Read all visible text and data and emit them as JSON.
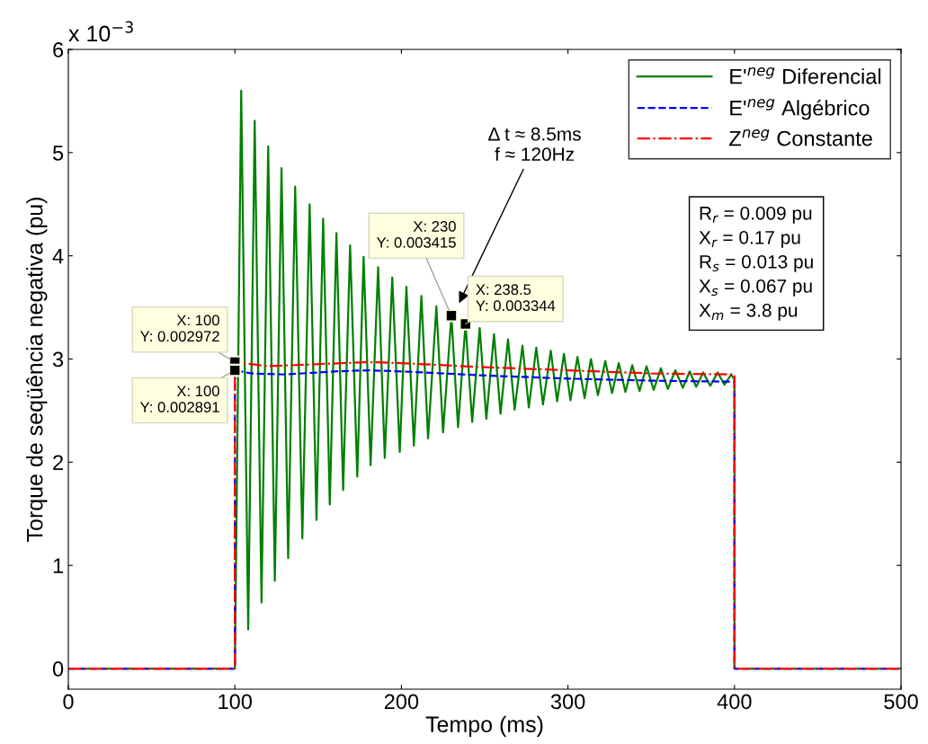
{
  "chart_data": {
    "type": "line",
    "xlabel": "Tempo (ms)",
    "ylabel": "Torque de seqüência negativa (pu)",
    "xlim": [
      0,
      500
    ],
    "xticks": [
      0,
      100,
      200,
      300,
      400,
      500
    ],
    "ylim": [
      -0.2,
      6
    ],
    "yticks": [
      0,
      1,
      2,
      3,
      4,
      5,
      6
    ],
    "grid": false,
    "legend": "top right",
    "series": [
      {
        "name": "E'$^{neg}$ Diferencial",
        "color": "#008000",
        "line_style": "solid",
        "x": [
          0,
          100,
          103.8,
          108,
          111.9,
          116,
          120,
          124,
          128,
          132,
          136.2,
          140.5,
          144.9,
          149,
          153,
          157,
          161,
          165,
          169.2,
          173.5,
          177.3,
          181.5,
          186,
          190,
          194.5,
          199,
          203,
          207.5,
          212,
          216,
          221,
          225,
          230,
          234,
          238.5,
          242.5,
          247,
          251,
          255.6,
          259.5,
          264,
          268,
          272.7,
          276.5,
          281,
          285,
          289.7,
          293.5,
          297.6,
          301.5,
          305.7,
          310,
          313.8,
          318,
          322.4,
          326.5,
          330.5,
          334.5,
          338.6,
          343,
          347.2,
          351.5,
          355.8,
          360,
          364.5,
          369,
          373.1,
          377,
          381.2,
          385.5,
          389.9,
          394,
          398,
          400,
          400,
          500
        ],
        "values": [
          0,
          0,
          5.6,
          0.38,
          5.31,
          0.64,
          5.06,
          0.85,
          4.85,
          1.07,
          4.67,
          1.26,
          4.5,
          1.44,
          4.36,
          1.59,
          4.22,
          1.73,
          4.1,
          1.86,
          3.99,
          1.97,
          3.89,
          2.04,
          3.79,
          2.1,
          3.7,
          2.16,
          3.61,
          2.23,
          3.51,
          2.29,
          3.42,
          2.34,
          3.34,
          2.39,
          3.3,
          2.42,
          3.24,
          2.47,
          3.19,
          2.51,
          3.13,
          2.53,
          3.11,
          2.56,
          3.08,
          2.59,
          3.05,
          2.6,
          3.02,
          2.62,
          3.0,
          2.65,
          2.98,
          2.67,
          2.96,
          2.68,
          2.94,
          2.69,
          2.93,
          2.7,
          2.91,
          2.71,
          2.89,
          2.72,
          2.88,
          2.73,
          2.87,
          2.74,
          2.87,
          2.75,
          2.85,
          2.8,
          0,
          0
        ]
      },
      {
        "name": "E'$^{neg}$ Algébrico",
        "color": "#0000ff",
        "line_style": "dashed",
        "x": [
          0,
          100,
          100,
          110,
          130,
          160,
          180,
          200,
          250,
          300,
          350,
          400,
          400,
          500
        ],
        "values": [
          0,
          0,
          2.89,
          2.86,
          2.85,
          2.88,
          2.89,
          2.88,
          2.84,
          2.81,
          2.79,
          2.78,
          0,
          0
        ]
      },
      {
        "name": "Z$^{neg}$ Constante",
        "color": "#ff0000",
        "line_style": "dashdot",
        "x": [
          0,
          100,
          100,
          120,
          150,
          180,
          200,
          250,
          300,
          350,
          400,
          400,
          500
        ],
        "values": [
          0,
          0,
          2.97,
          2.93,
          2.95,
          2.97,
          2.96,
          2.92,
          2.89,
          2.86,
          2.85,
          0,
          0
        ]
      }
    ],
    "annotations": [
      "x 10$^{−3}$",
      {
        "text": "X: 100\nY: 0.002972",
        "x": 100,
        "y": 2.97
      },
      {
        "text": "X: 100\nY: 0.002891",
        "x": 100,
        "y": 2.89
      },
      {
        "text": "X: 230\nY: 0.003415",
        "x": 230,
        "y": 3.42
      },
      {
        "text": "X: 238.5\nY: 0.003344",
        "x": 238.5,
        "y": 3.34
      },
      "Δ t ≈ 8.5ms\nf ≈ 120Hz",
      "R$_{r}$ = 0.009 pu\nX$_{r}$ = 0.17 pu\nR$_{s}$ = 0.013 pu\nX$_{s}$ = 0.067 pu\nX$_{m}$ = 3.8 pu"
    ]
  }
}
